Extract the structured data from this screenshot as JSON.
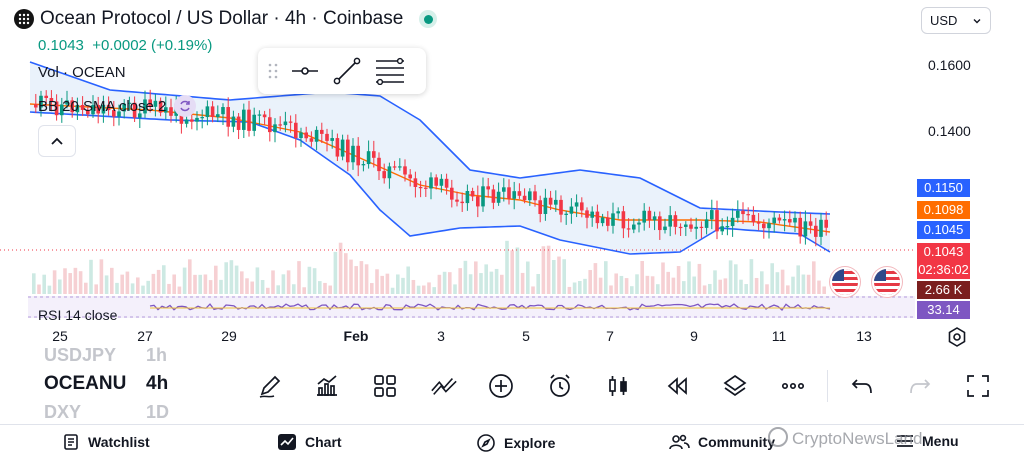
{
  "header": {
    "title": "Ocean Protocol / US Dollar · 4h · Coinbase",
    "last_price": "0.1043",
    "change": "+0.0002 (+0.19%)",
    "currency": "USD"
  },
  "indicators": {
    "volume": "Vol · OCEAN",
    "bollinger": "BB 20 SMA close 2",
    "rsi": "RSI 14 close"
  },
  "price_axis": {
    "labels": [
      "0.1600",
      "0.1400"
    ],
    "tags": [
      {
        "text": "0.1150",
        "color": "#2962ff"
      },
      {
        "text": "0.1098",
        "color": "#ff6d00"
      },
      {
        "text": "0.1045",
        "color": "#2962ff"
      },
      {
        "text": "0.1043",
        "color": "#f23645"
      },
      {
        "text": "02:36:02",
        "color": "#f23645"
      },
      {
        "text": "2.66 K",
        "color": "#7b1f1f"
      },
      {
        "text": "33.14",
        "color": "#7e57c2"
      }
    ]
  },
  "time_axis": {
    "labels": [
      "25",
      "27",
      "29",
      "Feb",
      "3",
      "5",
      "7",
      "9",
      "11",
      "13"
    ]
  },
  "symbols": {
    "above": "USDJPY",
    "above_tf": "1h",
    "current": "OCEANUSD",
    "current_tf": "4h",
    "below": "DXY",
    "below_tf": "1D"
  },
  "toolbar_icons": [
    "pencil-icon",
    "indicators-icon",
    "layouts-icon",
    "compare-icon",
    "add-icon",
    "alert-icon",
    "candle-type-icon",
    "replay-icon",
    "layers-icon",
    "more-icon",
    "undo-icon",
    "redo-icon",
    "fullscreen-icon"
  ],
  "nav": {
    "watchlist": "Watchlist",
    "chart": "Chart",
    "explore": "Explore",
    "community": "Community",
    "menu": "Menu"
  },
  "watermark": "CryptoNewsLand",
  "colors": {
    "up": "#089981",
    "down": "#f23645",
    "bb_band": "#2962ff",
    "bb_basis": "#ff6d00",
    "bb_fill": "#e8f1fb",
    "rsi": "#7e57c2"
  }
}
